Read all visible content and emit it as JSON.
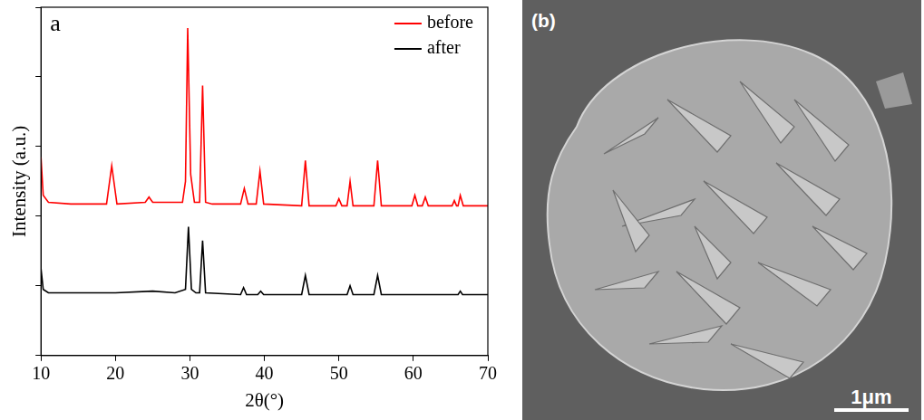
{
  "chart_data": {
    "type": "line",
    "x_label": "2θ(°)",
    "y_label": "Intensity (a.u.)",
    "annotations": [
      "a"
    ],
    "xlim": [
      10,
      70
    ],
    "xticks": [
      10,
      20,
      30,
      40,
      50,
      60,
      70
    ],
    "ylim": [
      0,
      100
    ],
    "yticks": [
      0,
      20,
      40,
      60,
      80,
      100
    ],
    "tick_labels": "x",
    "grid": false,
    "legend": "upper right",
    "series": [
      {
        "name": "before",
        "color": "#ff0000",
        "x": [
          10,
          10.3,
          11,
          14,
          18.8,
          19.5,
          20.2,
          24,
          24.5,
          25,
          29,
          29.4,
          29.7,
          30.1,
          30.6,
          31.3,
          31.7,
          32.1,
          33,
          36.8,
          37.3,
          37.8,
          38.9,
          39.4,
          39.9,
          45,
          45.5,
          46,
          49.6,
          50,
          50.4,
          51.1,
          51.5,
          51.9,
          54.7,
          55.2,
          55.7,
          59.8,
          60.2,
          60.6,
          61.2,
          61.6,
          62,
          65.2,
          65.5,
          65.8,
          66,
          66.3,
          66.7,
          70
        ],
        "values": [
          57,
          46,
          44,
          43.5,
          43.5,
          54.5,
          43.5,
          44,
          45.5,
          44,
          44,
          50,
          94,
          52,
          44,
          44,
          77.5,
          44,
          43.5,
          43.5,
          48,
          43.5,
          43.5,
          53,
          43.5,
          43,
          56,
          43,
          43,
          45,
          43,
          43,
          50,
          43,
          43,
          56,
          43,
          43,
          46,
          43,
          43,
          45.5,
          43,
          43,
          44.5,
          43,
          43,
          46,
          43,
          43
        ]
      },
      {
        "name": "after",
        "color": "#000000",
        "x": [
          10,
          10.3,
          11,
          20,
          25,
          28,
          29.4,
          29.8,
          30.2,
          30.8,
          31.3,
          31.7,
          32.1,
          36.8,
          37.2,
          37.6,
          39.1,
          39.5,
          39.9,
          45,
          45.5,
          46,
          51.1,
          51.5,
          51.9,
          54.7,
          55.2,
          55.7,
          66,
          66.3,
          66.6,
          70
        ],
        "values": [
          25,
          19,
          18,
          18,
          18.5,
          18,
          19,
          37,
          19,
          18,
          18,
          33,
          18,
          17.5,
          19.5,
          17.5,
          17.5,
          18.5,
          17.5,
          17.5,
          23,
          17.5,
          17.5,
          20,
          17.5,
          17.5,
          23,
          17.5,
          17.5,
          18.5,
          17.5,
          17.5
        ]
      }
    ]
  },
  "image_panel": {
    "label": "(b)",
    "scale_bar": "1μm"
  }
}
